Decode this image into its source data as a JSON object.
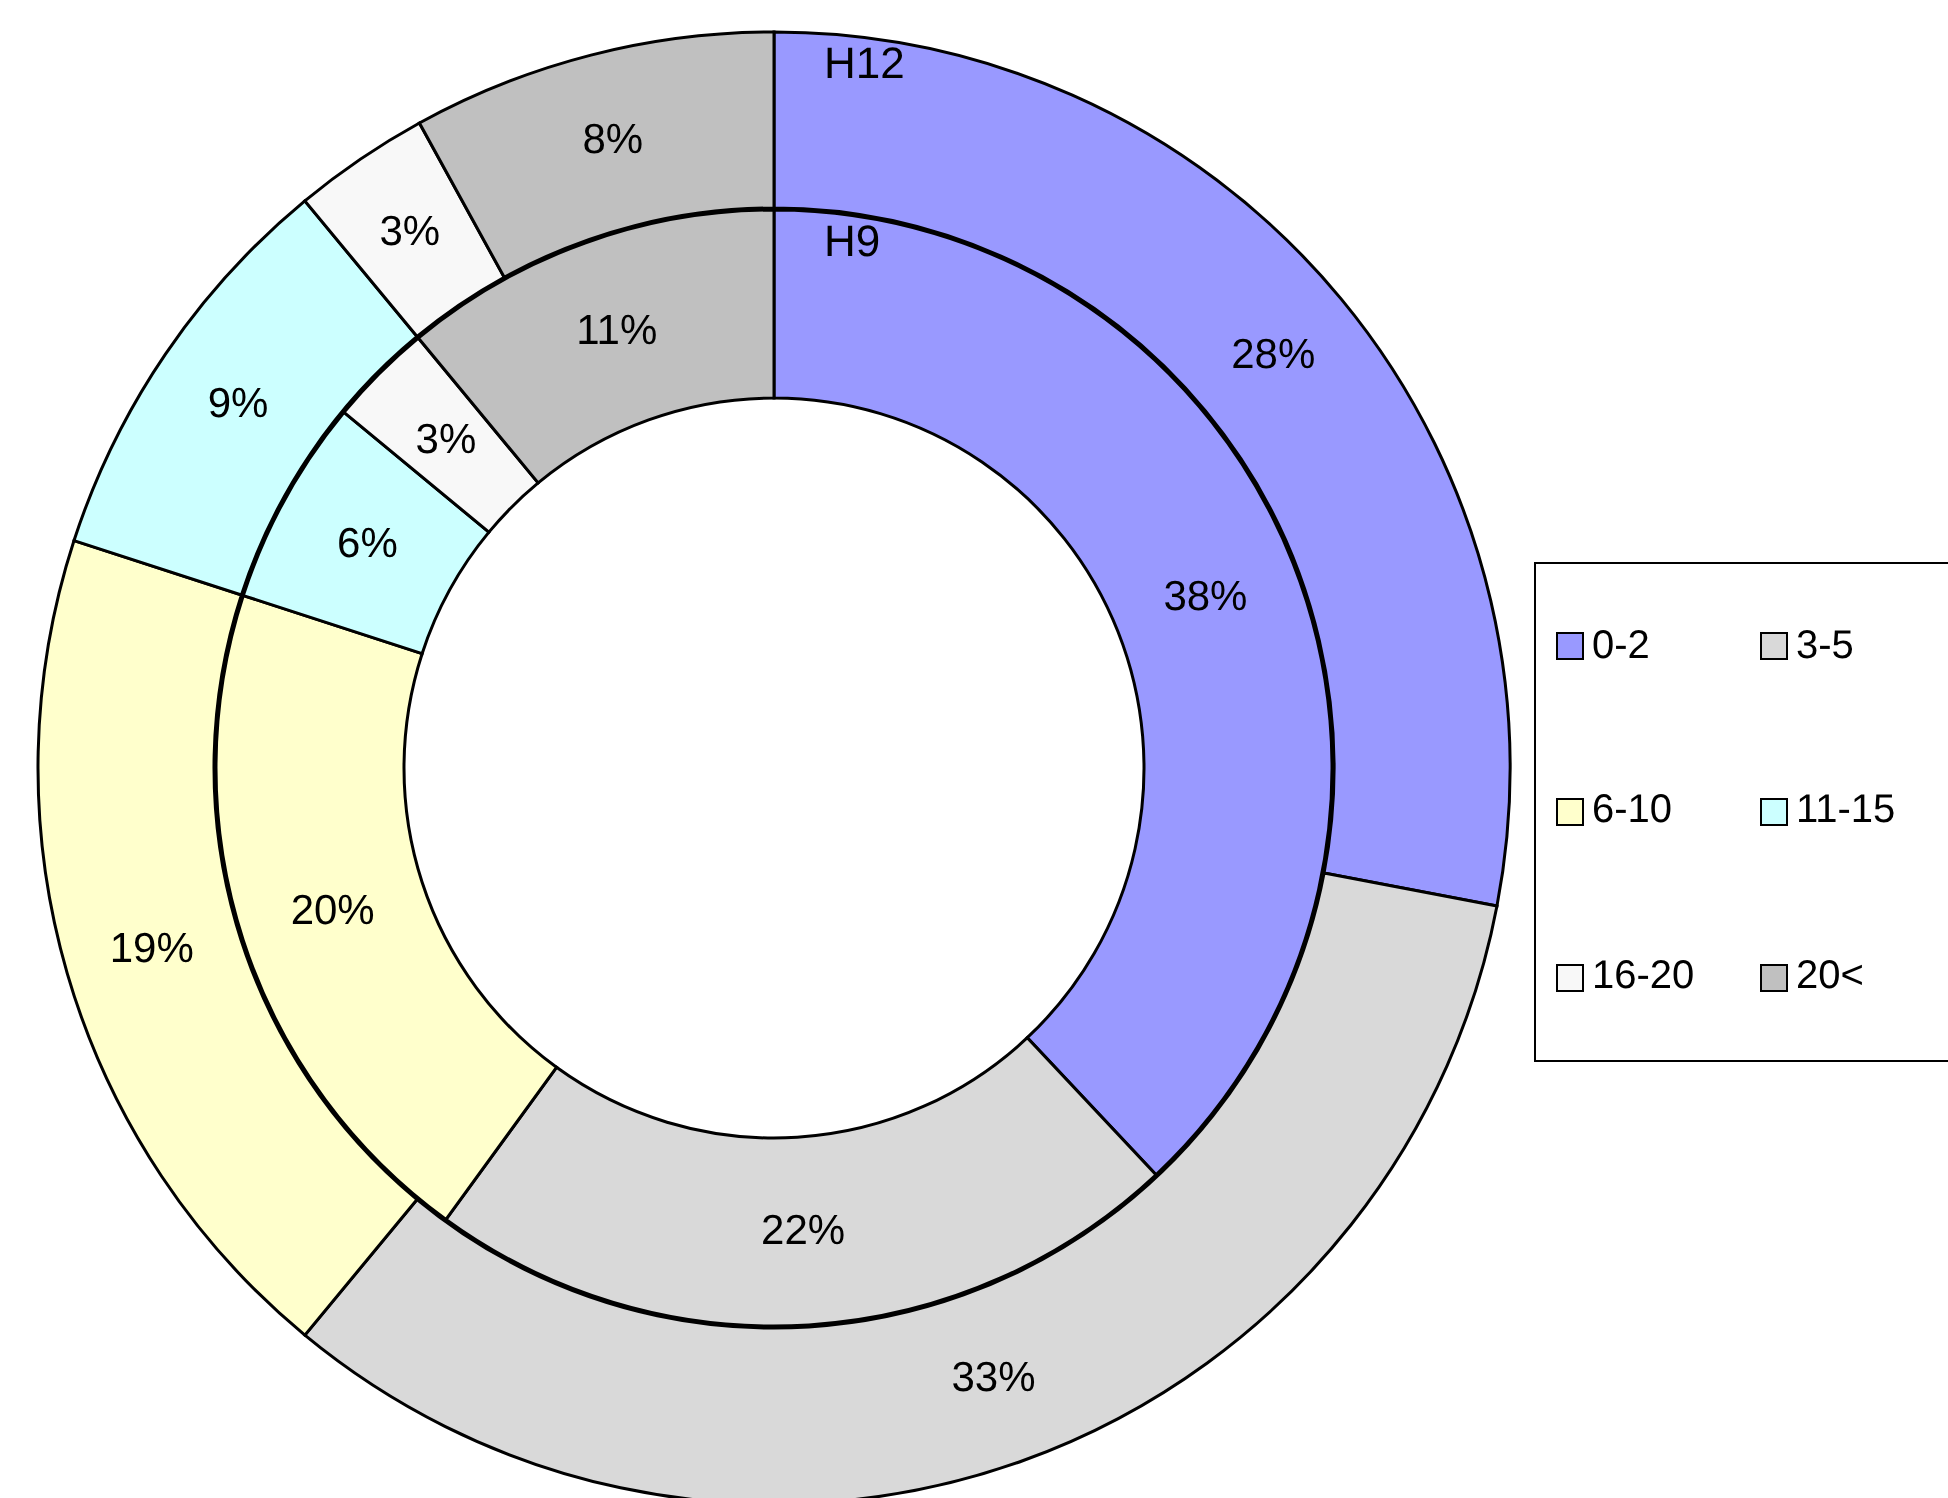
{
  "chart_data": {
    "type": "donut",
    "categories": [
      "0-2",
      "3-5",
      "6-10",
      "11-15",
      "16-20",
      "20<"
    ],
    "colors": [
      "#9999ff",
      "#d9d9d9",
      "#ffffcc",
      "#ccffff",
      "#f8f8f8",
      "#c0c0c0"
    ],
    "series": [
      {
        "name": "H12",
        "values": [
          28,
          33,
          19,
          9,
          3,
          8
        ],
        "value_labels": [
          "28%",
          "33%",
          "19%",
          "9%",
          "3%",
          "8%"
        ]
      },
      {
        "name": "H9",
        "values": [
          38,
          22,
          20,
          6,
          3,
          11
        ],
        "value_labels": [
          "38%",
          "22%",
          "20%",
          "6%",
          "3%",
          "11%"
        ]
      }
    ],
    "legend": "right"
  }
}
